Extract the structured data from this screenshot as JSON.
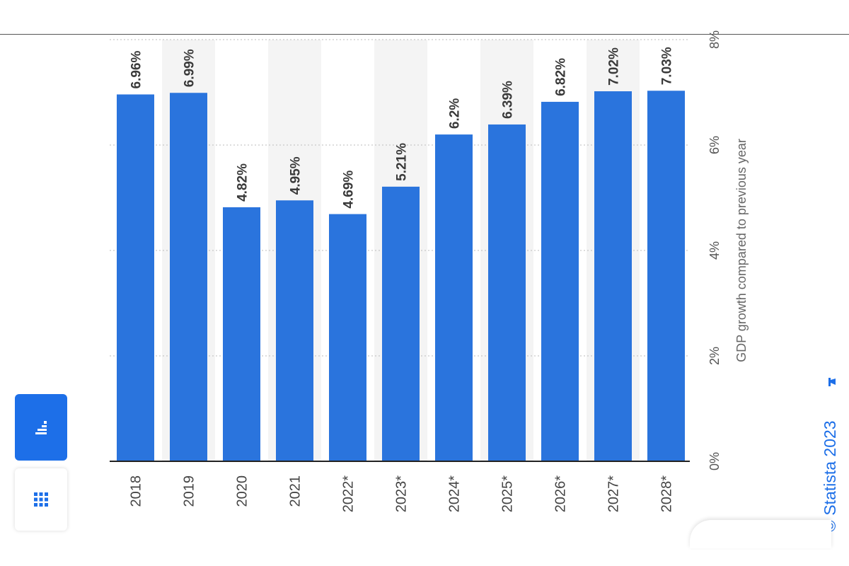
{
  "chart_data": {
    "type": "bar",
    "categories": [
      "2018",
      "2019",
      "2020",
      "2021",
      "2022*",
      "2023*",
      "2024*",
      "2025*",
      "2026*",
      "2027*",
      "2028*"
    ],
    "values": [
      6.96,
      6.99,
      4.82,
      4.95,
      4.69,
      5.21,
      6.2,
      6.39,
      6.82,
      7.02,
      7.03
    ],
    "data_labels": [
      "6.96%",
      "6.99%",
      "4.82%",
      "4.95%",
      "4.69%",
      "5.21%",
      "6.2%",
      "6.39%",
      "6.82%",
      "7.02%",
      "7.03%"
    ],
    "ylabel": "GDP growth compared to previous year",
    "yticks": [
      0,
      2,
      4,
      6,
      8
    ],
    "ytick_labels": [
      "0%",
      "2%",
      "4%",
      "6%",
      "8%"
    ],
    "ylim": [
      0,
      8
    ],
    "grid": true,
    "orientation": "rotated 90 degrees clockwise",
    "colors": {
      "bar": "#2a74dd",
      "axis": "#222222",
      "grid": "#bbbbbb",
      "band": "#f4f4f4"
    }
  },
  "sidebar": {
    "buttons": [
      {
        "icon": "bar-chart-icon",
        "active": true
      },
      {
        "icon": "table-grid-icon",
        "active": false
      }
    ]
  },
  "brand": {
    "text": "© Statista 2023",
    "icon": "flag-icon",
    "color": "#1d6fe8"
  }
}
